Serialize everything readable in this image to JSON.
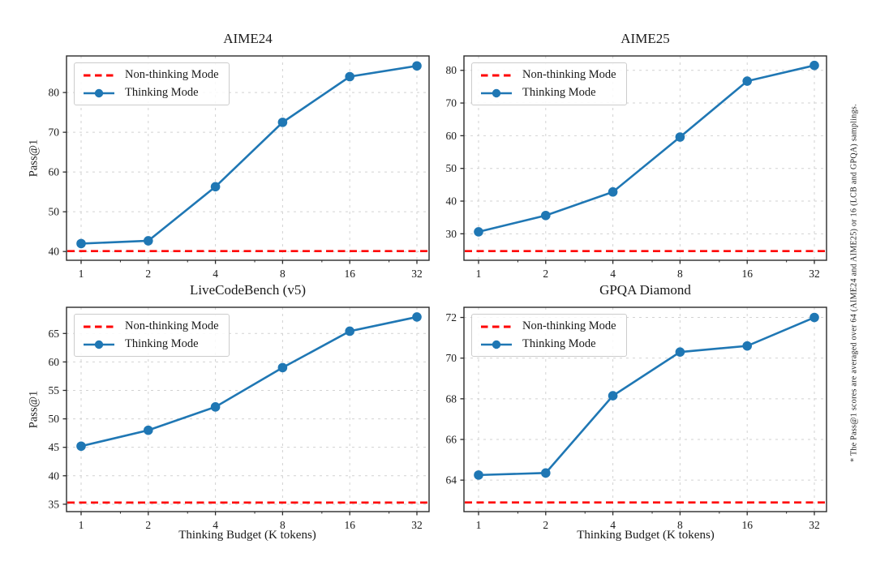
{
  "figure": {
    "background": "#ffffff",
    "footnote": "* The Pass@1 scores are averaged over 64 (AIME24 and AIME25) or 16 (LCB and GPQA) samplings."
  },
  "labels": {
    "xlabel": "Thinking Budget (K tokens)",
    "ylabel": "Pass@1"
  },
  "legend": {
    "non_thinking": "Non-thinking Mode",
    "thinking": "Thinking Mode"
  },
  "colors": {
    "thinking_line": "#1f77b4",
    "non_thinking_line": "#ff0000",
    "grid": "#d2d2d2",
    "spine": "#2a2a2a",
    "tick_text": "#1a1a1a"
  },
  "chart_data": [
    {
      "type": "line",
      "title": "AIME24",
      "x": [
        1,
        2,
        4,
        8,
        16,
        32
      ],
      "x_scale": "log2",
      "xlabel": "Thinking Budget (K tokens)",
      "ylabel": "Pass@1",
      "yticks": [
        40,
        50,
        60,
        70,
        80
      ],
      "ylim": [
        37.8,
        89.2
      ],
      "grid": true,
      "legend_position": "upper-left",
      "series": [
        {
          "name": "Thinking Mode",
          "style": "line-marker",
          "values": [
            42.0,
            42.7,
            56.3,
            72.5,
            84.0,
            86.7
          ]
        },
        {
          "name": "Non-thinking Mode",
          "style": "hline-dashed",
          "value": 40.1
        }
      ]
    },
    {
      "type": "line",
      "title": "AIME25",
      "x": [
        1,
        2,
        4,
        8,
        16,
        32
      ],
      "x_scale": "log2",
      "xlabel": "Thinking Budget (K tokens)",
      "ylabel": "Pass@1",
      "yticks": [
        30,
        40,
        50,
        60,
        70,
        80
      ],
      "ylim": [
        21.9,
        84.4
      ],
      "grid": true,
      "legend_position": "upper-left",
      "series": [
        {
          "name": "Thinking Mode",
          "style": "line-marker",
          "values": [
            30.6,
            35.6,
            42.8,
            59.6,
            76.7,
            81.5
          ]
        },
        {
          "name": "Non-thinking Mode",
          "style": "hline-dashed",
          "value": 24.7
        }
      ]
    },
    {
      "type": "line",
      "title": "LiveCodeBench (v5)",
      "x": [
        1,
        2,
        4,
        8,
        16,
        32
      ],
      "x_scale": "log2",
      "xlabel": "Thinking Budget (K tokens)",
      "ylabel": "Pass@1",
      "yticks": [
        35,
        40,
        45,
        50,
        55,
        60,
        65
      ],
      "ylim": [
        33.7,
        69.6
      ],
      "grid": true,
      "legend_position": "upper-left",
      "series": [
        {
          "name": "Thinking Mode",
          "style": "line-marker",
          "values": [
            45.2,
            48.0,
            52.1,
            59.0,
            65.4,
            67.9
          ]
        },
        {
          "name": "Non-thinking Mode",
          "style": "hline-dashed",
          "value": 35.3
        }
      ]
    },
    {
      "type": "line",
      "title": "GPQA Diamond",
      "x": [
        1,
        2,
        4,
        8,
        16,
        32
      ],
      "x_scale": "log2",
      "xlabel": "Thinking Budget (K tokens)",
      "ylabel": "Pass@1",
      "yticks": [
        64,
        66,
        68,
        70,
        72
      ],
      "ylim": [
        62.45,
        72.5
      ],
      "grid": true,
      "legend_position": "upper-left",
      "series": [
        {
          "name": "Thinking Mode",
          "style": "line-marker",
          "values": [
            64.25,
            64.35,
            68.15,
            70.3,
            70.6,
            72.0
          ]
        },
        {
          "name": "Non-thinking Mode",
          "style": "hline-dashed",
          "value": 62.9
        }
      ]
    }
  ]
}
